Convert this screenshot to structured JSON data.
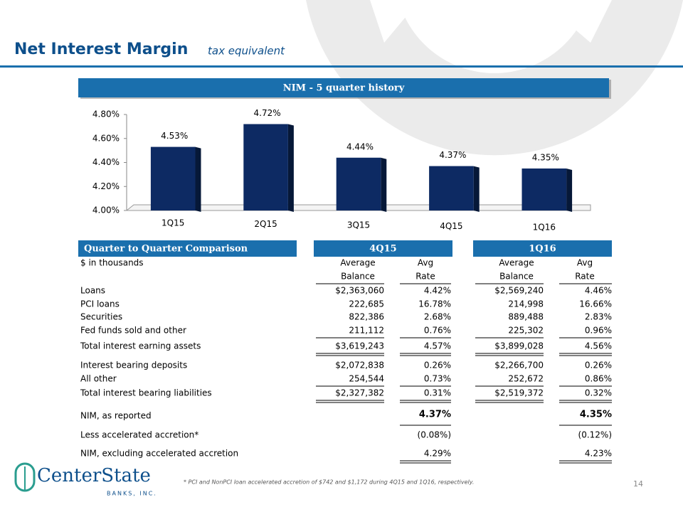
{
  "header": {
    "title": "Net Interest Margin",
    "subtitle": "tax equivalent"
  },
  "chart_data": {
    "type": "bar",
    "title": "NIM - 5 quarter history",
    "categories": [
      "1Q15",
      "2Q15",
      "3Q15",
      "4Q15",
      "1Q16"
    ],
    "values": [
      4.53,
      4.72,
      4.44,
      4.37,
      4.35
    ],
    "value_labels": [
      "4.53%",
      "4.72%",
      "4.44%",
      "4.37%",
      "4.35%"
    ],
    "color": "#0d2a63",
    "ylim": [
      4.0,
      4.8
    ],
    "yticks": [
      {
        "value": 4.0,
        "label": "4.00%"
      },
      {
        "value": 4.2,
        "label": "4.20%"
      },
      {
        "value": 4.4,
        "label": "4.40%"
      },
      {
        "value": 4.6,
        "label": "4.60%"
      },
      {
        "value": 4.8,
        "label": "4.80%"
      }
    ]
  },
  "table": {
    "title": "Quarter to Quarter Comparison",
    "periods": [
      "4Q15",
      "1Q16"
    ],
    "unit_note": "$ in thousands",
    "column_headers": [
      [
        "Average",
        "Balance"
      ],
      [
        "Avg",
        "Rate"
      ],
      [
        "Average",
        "Balance"
      ],
      [
        "Avg",
        "Rate"
      ]
    ],
    "rows": [
      [
        "Loans",
        "$2,363,060",
        "4.42%",
        "$2,569,240",
        "4.46%"
      ],
      [
        "PCI loans",
        "222,685",
        "16.78%",
        "214,998",
        "16.66%"
      ],
      [
        "Securities",
        "822,386",
        "2.68%",
        "889,488",
        "2.83%"
      ],
      [
        "Fed funds sold and other",
        "211,112",
        "0.76%",
        "225,302",
        "0.96%"
      ],
      [
        "Total interest earning assets",
        "$3,619,243",
        "4.57%",
        "$3,899,028",
        "4.56%"
      ],
      [
        "Interest bearing deposits",
        "$2,072,838",
        "0.26%",
        "$2,266,700",
        "0.26%"
      ],
      [
        "All other",
        "254,544",
        "0.73%",
        "252,672",
        "0.86%"
      ],
      [
        "Total interest bearing liabilities",
        "$2,327,382",
        "0.31%",
        "$2,519,372",
        "0.32%"
      ]
    ],
    "summary_rows": [
      {
        "label": "NIM, as reported",
        "values": [
          "4.37%",
          "4.35%"
        ]
      },
      {
        "label": "Less accelerated accretion*",
        "values": [
          "(0.08%)",
          "(0.12%)"
        ]
      },
      {
        "label": "NIM, excluding accelerated accretion",
        "values": [
          "4.29%",
          "4.23%"
        ]
      }
    ]
  },
  "footnote": "* PCI and NonPCI loan accelerated accretion of $742 and $1,172 during 4Q15 and 1Q16, respectively.",
  "page_number": "14",
  "logo": {
    "name": "CenterState",
    "tagline": "BANKS, INC."
  }
}
